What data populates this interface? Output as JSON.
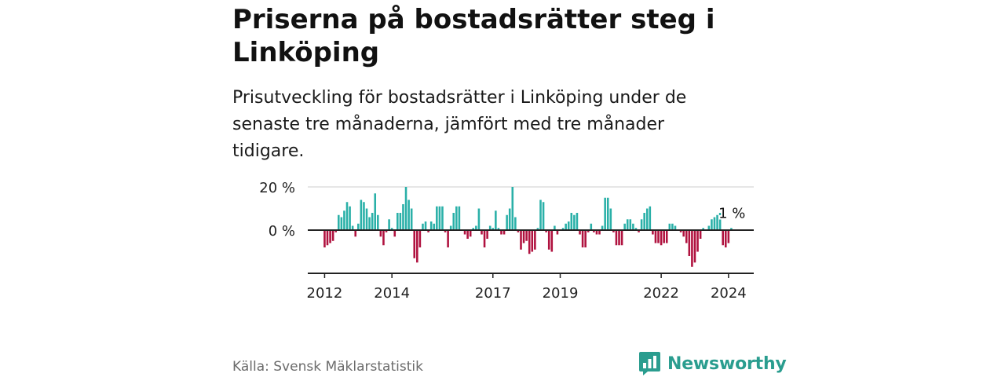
{
  "title": "Priserna på bostadsrätter steg i Linköping",
  "subtitle": "Prisutveckling för bostadsrätter i Linköping under de senaste tre månaderna, jämfört med tre månader tidigare.",
  "source": "Källa: Svensk Mäklarstatistik",
  "brand": "Newsworthy",
  "colors": {
    "positive": "#2ab0a8",
    "negative": "#b0123f",
    "brand": "#2a9d8f",
    "grid": "#dddddd",
    "axis": "#222222"
  },
  "chart_data": {
    "type": "bar",
    "title": "",
    "xlabel": "",
    "ylabel": "",
    "ylim": [
      -20,
      20
    ],
    "yticks": [
      {
        "value": 20,
        "label": "20 %"
      },
      {
        "value": 0,
        "label": "0 %"
      }
    ],
    "xlim": [
      2011.5,
      2024.75
    ],
    "xticks": [
      {
        "value": 2012,
        "label": "2012"
      },
      {
        "value": 2014,
        "label": "2014"
      },
      {
        "value": 2017,
        "label": "2017"
      },
      {
        "value": 2019,
        "label": "2019"
      },
      {
        "value": 2022,
        "label": "2022"
      },
      {
        "value": 2024,
        "label": "2024"
      }
    ],
    "start": {
      "year": 2012,
      "month": 1
    },
    "values": [
      -8,
      -7,
      -6,
      -5,
      -1,
      7,
      6,
      9,
      13,
      11,
      2,
      -3,
      3,
      14,
      13,
      10,
      6,
      8,
      17,
      7,
      -3,
      -7,
      -1,
      5,
      1,
      -3,
      8,
      8,
      12,
      20,
      14,
      10,
      -13,
      -15,
      -8,
      3,
      4,
      -1,
      4,
      3,
      11,
      11,
      11,
      -1,
      -8,
      2,
      8,
      11,
      11,
      0,
      -2,
      -4,
      -3,
      1,
      2,
      10,
      -2,
      -8,
      -4,
      2,
      1,
      9,
      1,
      -2,
      -2,
      7,
      10,
      20,
      6,
      -1,
      -9,
      -6,
      -5,
      -11,
      -10,
      -9,
      1,
      14,
      13,
      -1,
      -9,
      -10,
      2,
      -2,
      0,
      1,
      3,
      4,
      8,
      7,
      8,
      -2,
      -8,
      -8,
      -1,
      3,
      -1,
      -2,
      -2,
      2,
      15,
      15,
      10,
      -1,
      -7,
      -7,
      -7,
      3,
      5,
      5,
      3,
      1,
      -1,
      5,
      8,
      10,
      11,
      -2,
      -6,
      -6,
      -7,
      -6,
      -6,
      3,
      3,
      2,
      0,
      -1,
      -3,
      -6,
      -12,
      -17,
      -15,
      -10,
      -4,
      1,
      0,
      2,
      5,
      6,
      7,
      8,
      -7,
      -8,
      -6,
      1
    ],
    "last_label": "1 %"
  }
}
